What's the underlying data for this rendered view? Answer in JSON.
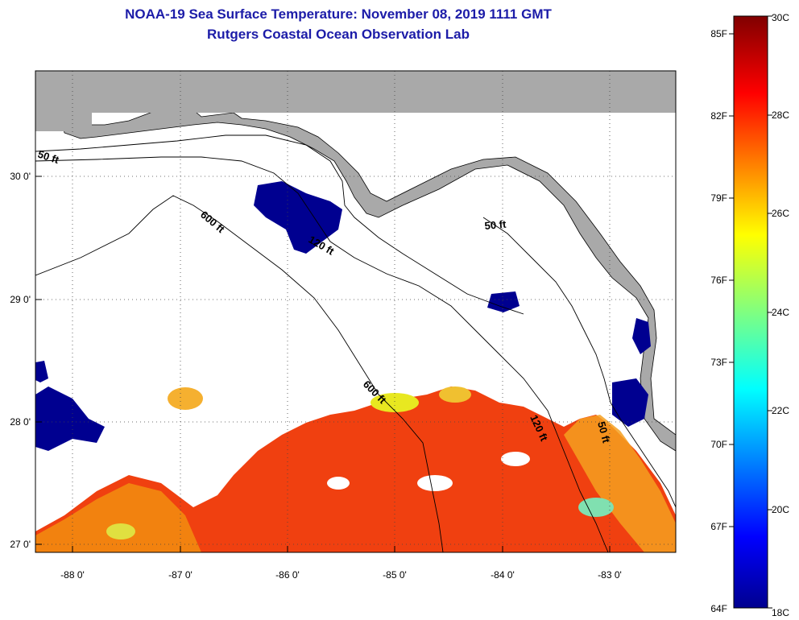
{
  "header": {
    "title": "NOAA-19 Sea Surface Temperature:  November 08, 2019 1111 GMT",
    "subtitle": "Rutgers Coastal Ocean Observation Lab"
  },
  "axes": {
    "longitude_labels": [
      "-88 0'",
      "-87 0'",
      "-86 0'",
      "-85 0'",
      "-84 0'",
      "-83 0'"
    ],
    "latitude_labels": [
      "30 0'",
      "29 0'",
      "28 0'",
      "27 0'"
    ]
  },
  "contours": {
    "labels": [
      "50 ft",
      "600 ft",
      "120 ft",
      "50 ft",
      "600 ft",
      "120 ft",
      "50 ft"
    ]
  },
  "colorbar": {
    "fahrenheit_labels": [
      "85F",
      "82F",
      "79F",
      "76F",
      "73F",
      "70F",
      "67F",
      "64F"
    ],
    "celsius_labels": [
      "30C",
      "28C",
      "26C",
      "24C",
      "22C",
      "20C",
      "18C"
    ],
    "range_celsius": [
      18,
      30
    ],
    "colormap": "jet",
    "colors": [
      "#00008f",
      "#0000ff",
      "#00ffff",
      "#ffff00",
      "#ff0000",
      "#800000"
    ]
  },
  "map": {
    "land_color": "#a9a9a9",
    "no_data_color": "#ffffff",
    "lon_range": [
      -88.3,
      -82.45
    ],
    "lat_range": [
      26.95,
      30.85
    ]
  }
}
